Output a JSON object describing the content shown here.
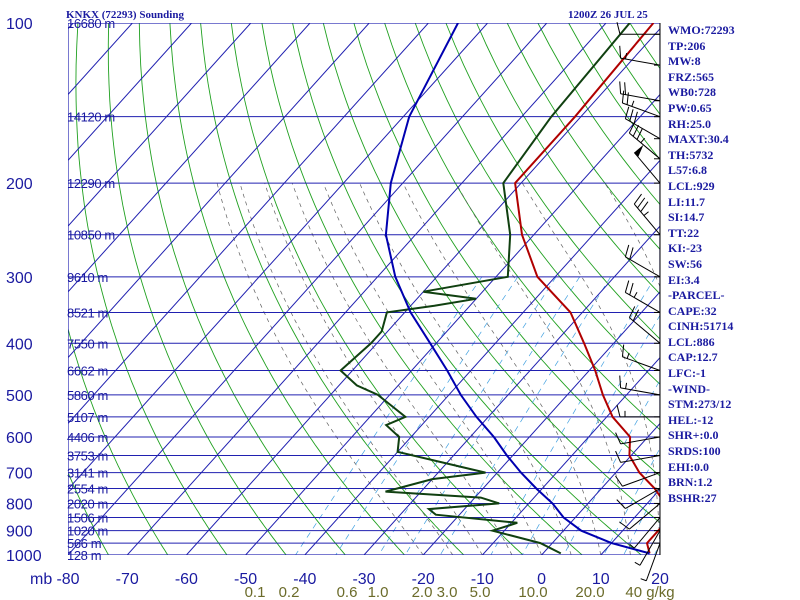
{
  "header": {
    "station": "KNKX (72293) Sounding",
    "time": "1200Z 26 JUL 25"
  },
  "colors": {
    "grid": "#2020b0",
    "dry_adiabat": "#20a020",
    "moist_adiabat": "#606060",
    "mixing_ratio": "#40a0e0",
    "temperature": "#b00000",
    "dewpoint": "#104010",
    "parcel": "#0000b0",
    "text": "#1a1aa0",
    "mixing_label": "#6b6b2a"
  },
  "stats": [
    "WMO:72293",
    "TP:206",
    "MW:8",
    "FRZ:565",
    "WB0:728",
    "PW:0.65",
    "RH:25.0",
    "MAXT:30.4",
    "TH:5732",
    "L57:6.8",
    "LCL:929",
    "LI:11.7",
    "SI:14.7",
    "TT:22",
    "KI:-23",
    "SW:56",
    "EI:3.4",
    "-PARCEL-",
    "CAPE:32",
    "CINH:51714",
    "LCL:886",
    "CAP:12.7",
    "LFC:-1",
    "-WIND-",
    "STM:273/12",
    "HEL:-12",
    "SHR+:0.0",
    "SRDS:100",
    "EHI:0.0",
    "BRN:1.2",
    "BSHR:27"
  ],
  "chart_data": {
    "type": "line",
    "diagram": "skew-t log-p",
    "xlabel": "",
    "ylabel": "mb",
    "xlim": [
      -80,
      20
    ],
    "ylim": [
      1000,
      100
    ],
    "x_ticks": [
      "-80",
      "-70",
      "-60",
      "-50",
      "-40",
      "-30",
      "-20",
      "-10",
      "0",
      "10",
      "20"
    ],
    "y_ticks": [
      100,
      200,
      300,
      400,
      500,
      600,
      700,
      800,
      900,
      1000
    ],
    "height_labels": [
      {
        "p": 100,
        "text": "16680 m"
      },
      {
        "p": 150,
        "text": "14120 m"
      },
      {
        "p": 200,
        "text": "12290 m"
      },
      {
        "p": 250,
        "text": "10850 m"
      },
      {
        "p": 300,
        "text": "9610 m"
      },
      {
        "p": 350,
        "text": "8521 m"
      },
      {
        "p": 400,
        "text": "7550 m"
      },
      {
        "p": 450,
        "text": "6662 m"
      },
      {
        "p": 500,
        "text": "5860 m"
      },
      {
        "p": 550,
        "text": "5107 m"
      },
      {
        "p": 600,
        "text": "4406 m"
      },
      {
        "p": 650,
        "text": "3753 m"
      },
      {
        "p": 700,
        "text": "3141 m"
      },
      {
        "p": 750,
        "text": "2554 m"
      },
      {
        "p": 800,
        "text": "2020 m"
      },
      {
        "p": 850,
        "text": "1506 m"
      },
      {
        "p": 900,
        "text": "1020 m"
      },
      {
        "p": 950,
        "text": "566 m"
      },
      {
        "p": 1000,
        "text": "128 m"
      }
    ],
    "mixing_ratio_labels": [
      "0.1",
      "0.2",
      "0.6",
      "1.0",
      "2.0",
      "3.0",
      "5.0",
      "10.0",
      "20.0",
      "40 g/kg"
    ],
    "series": [
      {
        "name": "Temperature",
        "points": [
          [
            100,
            -62
          ],
          [
            150,
            -61
          ],
          [
            200,
            -61
          ],
          [
            250,
            -52
          ],
          [
            300,
            -43
          ],
          [
            350,
            -32
          ],
          [
            400,
            -25
          ],
          [
            450,
            -19
          ],
          [
            500,
            -14
          ],
          [
            550,
            -9
          ],
          [
            600,
            -3
          ],
          [
            650,
            -0.3
          ],
          [
            700,
            4
          ],
          [
            750,
            9
          ],
          [
            800,
            13
          ],
          [
            850,
            16
          ],
          [
            900,
            16
          ],
          [
            950,
            16
          ],
          [
            993,
            18
          ]
        ]
      },
      {
        "name": "Dewpoint",
        "points": [
          [
            100,
            -66
          ],
          [
            150,
            -65
          ],
          [
            200,
            -63
          ],
          [
            250,
            -54
          ],
          [
            300,
            -48
          ],
          [
            320,
            -60
          ],
          [
            330,
            -50
          ],
          [
            340,
            -56
          ],
          [
            350,
            -63
          ],
          [
            380,
            -61
          ],
          [
            400,
            -61
          ],
          [
            450,
            -62
          ],
          [
            480,
            -57
          ],
          [
            500,
            -52
          ],
          [
            550,
            -44
          ],
          [
            570,
            -46
          ],
          [
            600,
            -42
          ],
          [
            640,
            -40
          ],
          [
            700,
            -22
          ],
          [
            720,
            -30
          ],
          [
            760,
            -36
          ],
          [
            780,
            -19
          ],
          [
            800,
            -15
          ],
          [
            820,
            -26
          ],
          [
            840,
            -24
          ],
          [
            870,
            -9
          ],
          [
            880,
            -10
          ],
          [
            900,
            -12
          ],
          [
            950,
            -2
          ],
          [
            993,
            3
          ]
        ]
      },
      {
        "name": "Parcel",
        "points": [
          [
            100,
            -95
          ],
          [
            150,
            -89
          ],
          [
            200,
            -82
          ],
          [
            250,
            -75
          ],
          [
            300,
            -67
          ],
          [
            350,
            -59
          ],
          [
            400,
            -51
          ],
          [
            450,
            -44
          ],
          [
            500,
            -38
          ],
          [
            550,
            -32
          ],
          [
            600,
            -26
          ],
          [
            650,
            -21
          ],
          [
            700,
            -16
          ],
          [
            750,
            -11
          ],
          [
            800,
            -6
          ],
          [
            850,
            -2
          ],
          [
            900,
            3
          ],
          [
            950,
            10
          ],
          [
            993,
            18
          ]
        ]
      }
    ],
    "wind_barbs": [
      {
        "p": 105,
        "dir": 270,
        "kt": 10
      },
      {
        "p": 120,
        "dir": 280,
        "kt": 15
      },
      {
        "p": 140,
        "dir": 280,
        "kt": 20
      },
      {
        "p": 150,
        "dir": 290,
        "kt": 25
      },
      {
        "p": 165,
        "dir": 300,
        "kt": 30
      },
      {
        "p": 180,
        "dir": 310,
        "kt": 35
      },
      {
        "p": 200,
        "dir": 320,
        "kt": 50
      },
      {
        "p": 250,
        "dir": 320,
        "kt": 35
      },
      {
        "p": 300,
        "dir": 300,
        "kt": 20
      },
      {
        "p": 350,
        "dir": 300,
        "kt": 25
      },
      {
        "p": 400,
        "dir": 310,
        "kt": 20
      },
      {
        "p": 450,
        "dir": 290,
        "kt": 15
      },
      {
        "p": 500,
        "dir": 280,
        "kt": 15
      },
      {
        "p": 550,
        "dir": 270,
        "kt": 15
      },
      {
        "p": 600,
        "dir": 260,
        "kt": 10
      },
      {
        "p": 650,
        "dir": 260,
        "kt": 10
      },
      {
        "p": 700,
        "dir": 250,
        "kt": 10
      },
      {
        "p": 750,
        "dir": 240,
        "kt": 10
      },
      {
        "p": 800,
        "dir": 230,
        "kt": 10
      },
      {
        "p": 850,
        "dir": 220,
        "kt": 5
      },
      {
        "p": 900,
        "dir": 210,
        "kt": 5
      },
      {
        "p": 950,
        "dir": 200,
        "kt": 5
      }
    ]
  }
}
